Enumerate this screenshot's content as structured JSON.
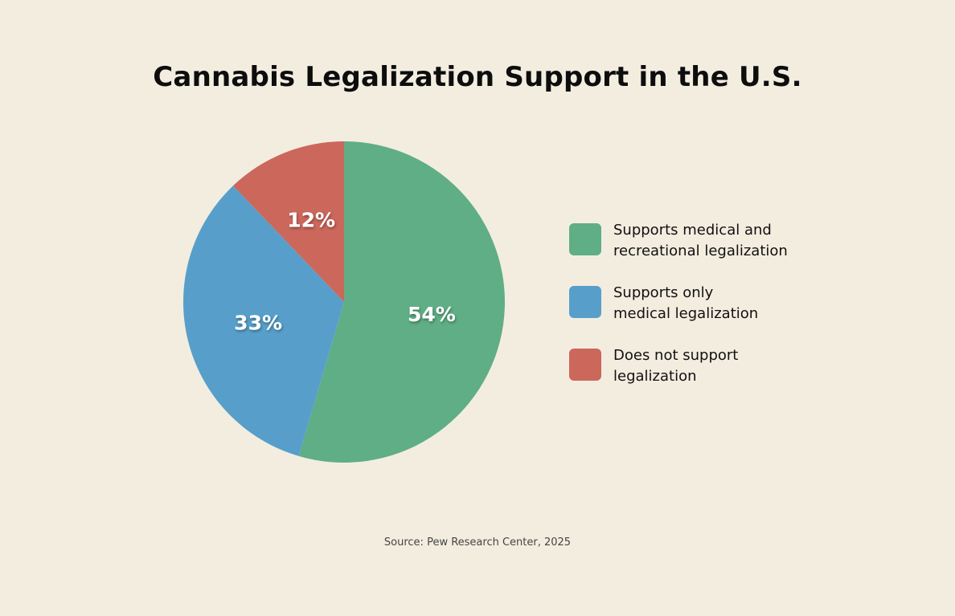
{
  "chart_data": {
    "type": "pie",
    "title": "Cannabis Legalization Support in the U.S.",
    "source": "Source: Pew Research Center, 2025",
    "legend_position": "right",
    "slices": [
      {
        "label": "Supports medical and recreational legalization",
        "legend_lines": [
          "Supports medical and",
          "recreational legalization"
        ],
        "value": 54,
        "value_label": "54%",
        "color": "#5fae86"
      },
      {
        "label": "Supports only medical legalization",
        "legend_lines": [
          "Supports only",
          "medical legalization"
        ],
        "value": 33,
        "value_label": "33%",
        "color": "#579fca"
      },
      {
        "label": "Does not support legalization",
        "legend_lines": [
          "Does not support",
          "legalization"
        ],
        "value": 12,
        "value_label": "12%",
        "color": "#cc675c"
      }
    ]
  }
}
